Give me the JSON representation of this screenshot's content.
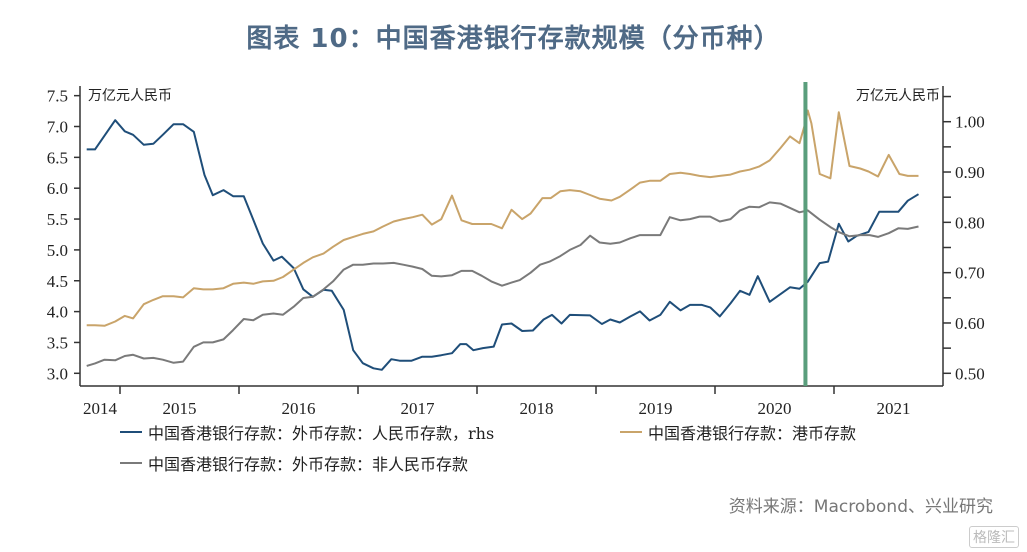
{
  "title": "图表 10：中国香港银行存款规模（分币种）",
  "source": "资料来源：Macrobond、兴业研究",
  "watermark": "格隆汇",
  "chart_data": {
    "type": "line",
    "title": "图表 10：中国香港银行存款规模（分币种）",
    "left_axis": {
      "label": "万亿元人民币",
      "ylim": [
        3.0,
        7.5
      ],
      "ticks": [
        "3.0",
        "3.5",
        "4.0",
        "4.5",
        "5.0",
        "5.5",
        "6.0",
        "6.5",
        "7.0",
        "7.5"
      ]
    },
    "right_axis": {
      "label": "万亿元人民币",
      "ylim": [
        0.5,
        1.05
      ],
      "ticks": [
        "0.50",
        "0.60",
        "0.70",
        "0.80",
        "0.90",
        "1.00"
      ]
    },
    "x_axis": {
      "xlim": [
        2014.62,
        2021.85
      ],
      "tick_labels": [
        "2014",
        "2015",
        "2016",
        "2017",
        "2018",
        "2019",
        "2020",
        "2021"
      ]
    },
    "grid": false,
    "legend_position": "bottom",
    "annotations": [
      {
        "type": "vertical-line",
        "x": 2020.76,
        "color": "#5a9e7c"
      }
    ],
    "series": [
      {
        "name": "中国香港银行存款：外币存款：人民币存款，rhs",
        "axis": "right",
        "color": "#1f4e79",
        "points": [
          [
            2014.72,
            0.945
          ],
          [
            2014.79,
            0.945
          ],
          [
            2014.96,
            1.003
          ],
          [
            2015.04,
            0.981
          ],
          [
            2015.11,
            0.974
          ],
          [
            2015.2,
            0.954
          ],
          [
            2015.28,
            0.956
          ],
          [
            2015.36,
            0.974
          ],
          [
            2015.45,
            0.995
          ],
          [
            2015.53,
            0.995
          ],
          [
            2015.62,
            0.98
          ],
          [
            2015.71,
            0.894
          ],
          [
            2015.78,
            0.854
          ],
          [
            2015.87,
            0.864
          ],
          [
            2015.95,
            0.852
          ],
          [
            2016.04,
            0.852
          ],
          [
            2016.12,
            0.805
          ],
          [
            2016.2,
            0.758
          ],
          [
            2016.29,
            0.724
          ],
          [
            2016.36,
            0.732
          ],
          [
            2016.46,
            0.709
          ],
          [
            2016.54,
            0.667
          ],
          [
            2016.62,
            0.652
          ],
          [
            2016.71,
            0.666
          ],
          [
            2016.78,
            0.664
          ],
          [
            2016.88,
            0.626
          ],
          [
            2016.96,
            0.546
          ],
          [
            2017.04,
            0.52
          ],
          [
            2017.13,
            0.51
          ],
          [
            2017.2,
            0.507
          ],
          [
            2017.28,
            0.528
          ],
          [
            2017.35,
            0.525
          ],
          [
            2017.45,
            0.525
          ],
          [
            2017.54,
            0.533
          ],
          [
            2017.62,
            0.533
          ],
          [
            2017.7,
            0.536
          ],
          [
            2017.79,
            0.54
          ],
          [
            2017.86,
            0.558
          ],
          [
            2017.91,
            0.558
          ],
          [
            2017.97,
            0.546
          ],
          [
            2018.05,
            0.55
          ],
          [
            2018.14,
            0.553
          ],
          [
            2018.21,
            0.597
          ],
          [
            2018.29,
            0.599
          ],
          [
            2018.38,
            0.584
          ],
          [
            2018.47,
            0.585
          ],
          [
            2018.56,
            0.607
          ],
          [
            2018.63,
            0.616
          ],
          [
            2018.71,
            0.599
          ],
          [
            2018.78,
            0.616
          ],
          [
            2018.95,
            0.615
          ],
          [
            2019.05,
            0.598
          ],
          [
            2019.12,
            0.607
          ],
          [
            2019.2,
            0.601
          ],
          [
            2019.29,
            0.613
          ],
          [
            2019.37,
            0.623
          ],
          [
            2019.45,
            0.605
          ],
          [
            2019.54,
            0.616
          ],
          [
            2019.62,
            0.642
          ],
          [
            2019.71,
            0.625
          ],
          [
            2019.79,
            0.636
          ],
          [
            2019.89,
            0.636
          ],
          [
            2019.96,
            0.631
          ],
          [
            2020.04,
            0.613
          ],
          [
            2020.13,
            0.639
          ],
          [
            2020.21,
            0.664
          ],
          [
            2020.29,
            0.656
          ],
          [
            2020.36,
            0.693
          ],
          [
            2020.46,
            0.642
          ],
          [
            2020.53,
            0.654
          ],
          [
            2020.63,
            0.671
          ],
          [
            2020.71,
            0.668
          ],
          [
            2020.78,
            0.682
          ],
          [
            2020.88,
            0.719
          ],
          [
            2020.95,
            0.722
          ],
          [
            2021.04,
            0.797
          ],
          [
            2021.12,
            0.762
          ],
          [
            2021.19,
            0.773
          ],
          [
            2021.29,
            0.781
          ],
          [
            2021.38,
            0.821
          ],
          [
            2021.46,
            0.821
          ],
          [
            2021.54,
            0.821
          ],
          [
            2021.62,
            0.843
          ],
          [
            2021.71,
            0.856
          ]
        ]
      },
      {
        "name": "中国香港银行存款：港币存款",
        "axis": "left",
        "color": "#c9a46a",
        "points": [
          [
            2014.72,
            3.78
          ],
          [
            2014.79,
            3.78
          ],
          [
            2014.87,
            3.77
          ],
          [
            2014.96,
            3.84
          ],
          [
            2015.04,
            3.93
          ],
          [
            2015.11,
            3.89
          ],
          [
            2015.2,
            4.12
          ],
          [
            2015.28,
            4.19
          ],
          [
            2015.36,
            4.25
          ],
          [
            2015.45,
            4.25
          ],
          [
            2015.53,
            4.23
          ],
          [
            2015.62,
            4.38
          ],
          [
            2015.7,
            4.36
          ],
          [
            2015.78,
            4.36
          ],
          [
            2015.87,
            4.38
          ],
          [
            2015.95,
            4.45
          ],
          [
            2016.04,
            4.47
          ],
          [
            2016.12,
            4.45
          ],
          [
            2016.2,
            4.49
          ],
          [
            2016.29,
            4.5
          ],
          [
            2016.37,
            4.56
          ],
          [
            2016.46,
            4.68
          ],
          [
            2016.54,
            4.79
          ],
          [
            2016.62,
            4.88
          ],
          [
            2016.71,
            4.94
          ],
          [
            2016.79,
            5.05
          ],
          [
            2016.88,
            5.16
          ],
          [
            2016.96,
            5.21
          ],
          [
            2017.04,
            5.26
          ],
          [
            2017.13,
            5.3
          ],
          [
            2017.21,
            5.38
          ],
          [
            2017.3,
            5.46
          ],
          [
            2017.38,
            5.5
          ],
          [
            2017.46,
            5.53
          ],
          [
            2017.54,
            5.57
          ],
          [
            2017.62,
            5.41
          ],
          [
            2017.7,
            5.5
          ],
          [
            2017.79,
            5.88
          ],
          [
            2017.87,
            5.48
          ],
          [
            2017.96,
            5.42
          ],
          [
            2018.04,
            5.42
          ],
          [
            2018.12,
            5.42
          ],
          [
            2018.21,
            5.35
          ],
          [
            2018.29,
            5.65
          ],
          [
            2018.38,
            5.5
          ],
          [
            2018.45,
            5.59
          ],
          [
            2018.55,
            5.84
          ],
          [
            2018.62,
            5.84
          ],
          [
            2018.7,
            5.95
          ],
          [
            2018.78,
            5.97
          ],
          [
            2018.87,
            5.95
          ],
          [
            2018.95,
            5.89
          ],
          [
            2019.03,
            5.83
          ],
          [
            2019.13,
            5.8
          ],
          [
            2019.2,
            5.86
          ],
          [
            2019.29,
            5.98
          ],
          [
            2019.37,
            6.09
          ],
          [
            2019.45,
            6.12
          ],
          [
            2019.54,
            6.12
          ],
          [
            2019.62,
            6.23
          ],
          [
            2019.71,
            6.25
          ],
          [
            2019.79,
            6.23
          ],
          [
            2019.87,
            6.2
          ],
          [
            2019.96,
            6.18
          ],
          [
            2020.04,
            6.2
          ],
          [
            2020.13,
            6.22
          ],
          [
            2020.21,
            6.27
          ],
          [
            2020.29,
            6.3
          ],
          [
            2020.37,
            6.35
          ],
          [
            2020.46,
            6.45
          ],
          [
            2020.55,
            6.65
          ],
          [
            2020.63,
            6.84
          ],
          [
            2020.71,
            6.73
          ],
          [
            2020.75,
            7.0
          ],
          [
            2020.78,
            7.26
          ],
          [
            2020.81,
            7.05
          ],
          [
            2020.88,
            6.23
          ],
          [
            2020.97,
            6.16
          ],
          [
            2021.04,
            7.23
          ],
          [
            2021.13,
            6.36
          ],
          [
            2021.22,
            6.32
          ],
          [
            2021.29,
            6.27
          ],
          [
            2021.37,
            6.19
          ],
          [
            2021.46,
            6.54
          ],
          [
            2021.55,
            6.23
          ],
          [
            2021.62,
            6.2
          ],
          [
            2021.71,
            6.2
          ]
        ]
      },
      {
        "name": "中国香港银行存款：外币存款：非人民币存款",
        "axis": "left",
        "color": "#7a7a7a",
        "points": [
          [
            2014.72,
            3.12
          ],
          [
            2014.79,
            3.16
          ],
          [
            2014.87,
            3.22
          ],
          [
            2014.96,
            3.21
          ],
          [
            2015.04,
            3.28
          ],
          [
            2015.11,
            3.3
          ],
          [
            2015.2,
            3.24
          ],
          [
            2015.28,
            3.25
          ],
          [
            2015.36,
            3.22
          ],
          [
            2015.45,
            3.17
          ],
          [
            2015.53,
            3.19
          ],
          [
            2015.62,
            3.43
          ],
          [
            2015.7,
            3.5
          ],
          [
            2015.78,
            3.5
          ],
          [
            2015.87,
            3.55
          ],
          [
            2015.95,
            3.7
          ],
          [
            2016.04,
            3.88
          ],
          [
            2016.12,
            3.86
          ],
          [
            2016.2,
            3.95
          ],
          [
            2016.29,
            3.97
          ],
          [
            2016.37,
            3.95
          ],
          [
            2016.46,
            4.08
          ],
          [
            2016.54,
            4.22
          ],
          [
            2016.62,
            4.24
          ],
          [
            2016.71,
            4.36
          ],
          [
            2016.79,
            4.49
          ],
          [
            2016.88,
            4.68
          ],
          [
            2016.96,
            4.76
          ],
          [
            2017.04,
            4.76
          ],
          [
            2017.13,
            4.78
          ],
          [
            2017.21,
            4.78
          ],
          [
            2017.3,
            4.79
          ],
          [
            2017.38,
            4.76
          ],
          [
            2017.46,
            4.73
          ],
          [
            2017.54,
            4.69
          ],
          [
            2017.62,
            4.58
          ],
          [
            2017.7,
            4.57
          ],
          [
            2017.79,
            4.59
          ],
          [
            2017.87,
            4.66
          ],
          [
            2017.96,
            4.66
          ],
          [
            2018.04,
            4.58
          ],
          [
            2018.12,
            4.49
          ],
          [
            2018.21,
            4.42
          ],
          [
            2018.29,
            4.47
          ],
          [
            2018.36,
            4.51
          ],
          [
            2018.45,
            4.63
          ],
          [
            2018.53,
            4.76
          ],
          [
            2018.61,
            4.81
          ],
          [
            2018.7,
            4.9
          ],
          [
            2018.78,
            5.0
          ],
          [
            2018.87,
            5.08
          ],
          [
            2018.95,
            5.23
          ],
          [
            2019.03,
            5.12
          ],
          [
            2019.12,
            5.1
          ],
          [
            2019.2,
            5.12
          ],
          [
            2019.29,
            5.19
          ],
          [
            2019.37,
            5.24
          ],
          [
            2019.45,
            5.24
          ],
          [
            2019.54,
            5.24
          ],
          [
            2019.62,
            5.53
          ],
          [
            2019.71,
            5.48
          ],
          [
            2019.79,
            5.5
          ],
          [
            2019.87,
            5.54
          ],
          [
            2019.96,
            5.54
          ],
          [
            2020.04,
            5.46
          ],
          [
            2020.13,
            5.5
          ],
          [
            2020.21,
            5.64
          ],
          [
            2020.29,
            5.7
          ],
          [
            2020.37,
            5.69
          ],
          [
            2020.46,
            5.77
          ],
          [
            2020.55,
            5.75
          ],
          [
            2020.63,
            5.68
          ],
          [
            2020.71,
            5.61
          ],
          [
            2020.78,
            5.64
          ],
          [
            2020.88,
            5.49
          ],
          [
            2020.97,
            5.37
          ],
          [
            2021.05,
            5.28
          ],
          [
            2021.13,
            5.22
          ],
          [
            2021.22,
            5.24
          ],
          [
            2021.3,
            5.24
          ],
          [
            2021.37,
            5.21
          ],
          [
            2021.46,
            5.27
          ],
          [
            2021.54,
            5.35
          ],
          [
            2021.62,
            5.34
          ],
          [
            2021.71,
            5.38
          ]
        ]
      }
    ]
  }
}
